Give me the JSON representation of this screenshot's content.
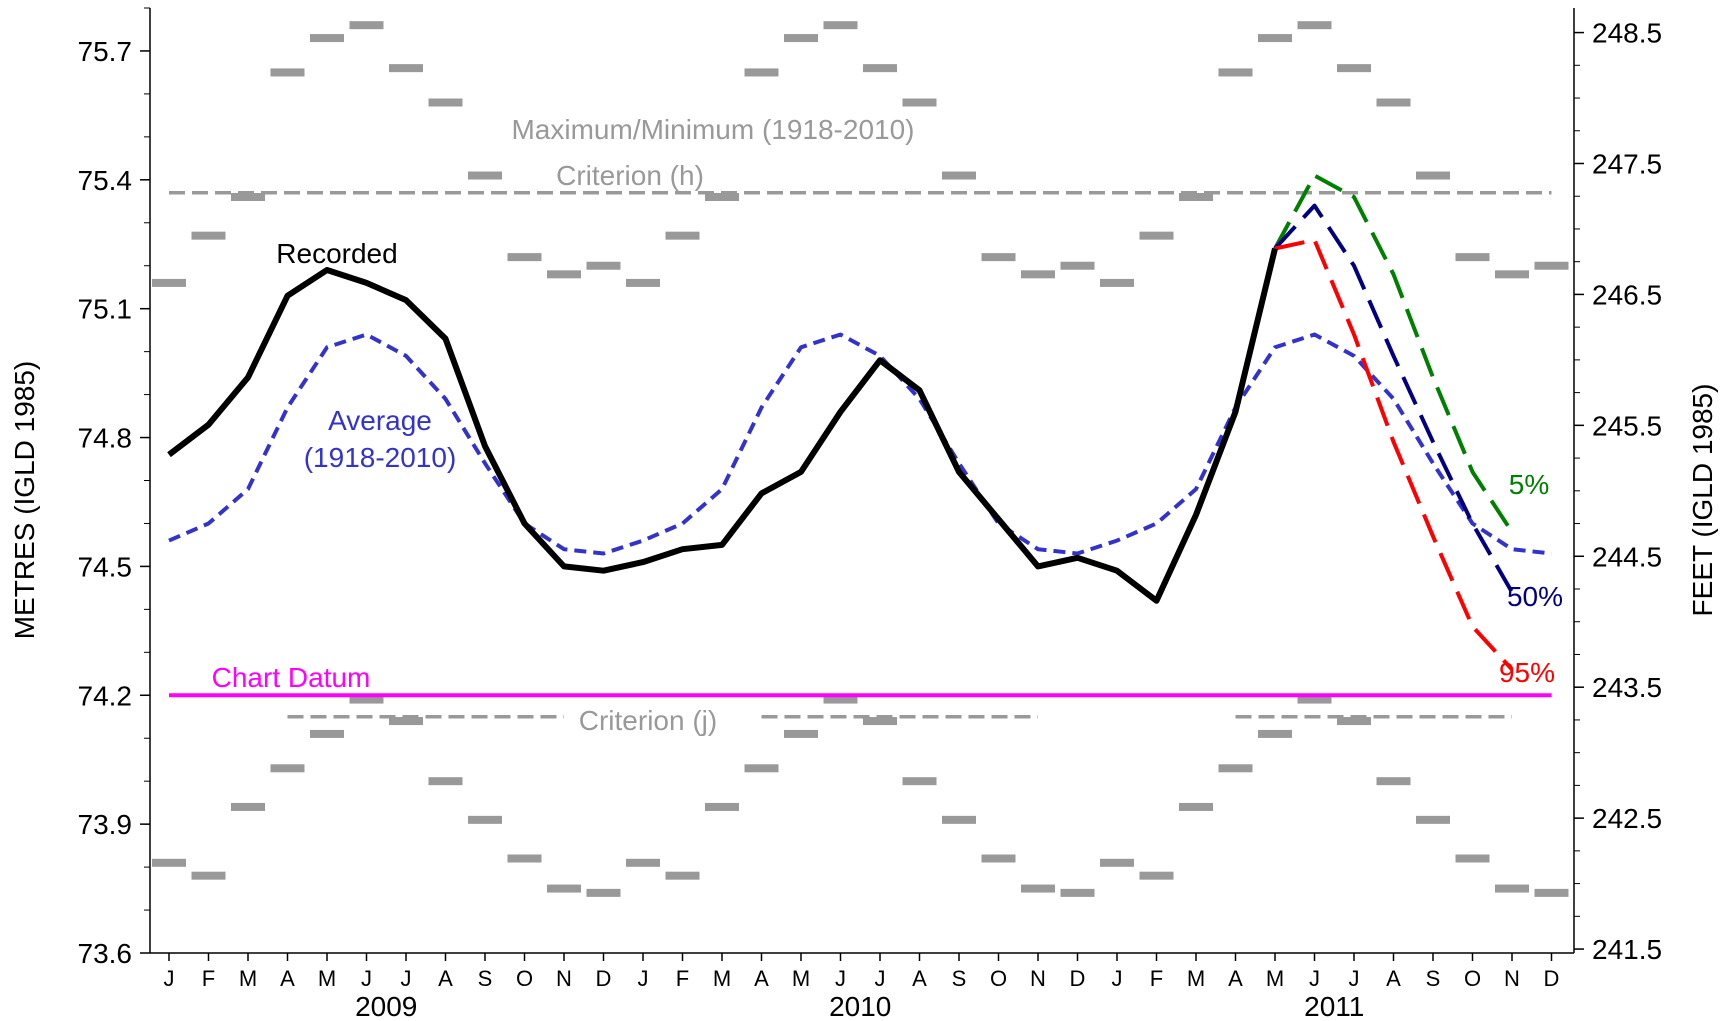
{
  "chart_data": {
    "type": "line",
    "ylabel_left": "METRES (IGLD 1985)",
    "ylabel_right": "FEET (IGLD 1985)",
    "ylim_metres": [
      73.6,
      75.8
    ],
    "yticks_metres": [
      "73.6",
      "73.9",
      "74.2",
      "74.5",
      "74.8",
      "75.1",
      "75.4",
      "75.7"
    ],
    "yticks_feet": [
      "241.5",
      "242.5",
      "243.5",
      "244.5",
      "245.5",
      "246.5",
      "247.5",
      "248.5"
    ],
    "yticks_feet_values": [
      241.5,
      242.5,
      243.5,
      244.5,
      245.5,
      246.5,
      247.5,
      248.5
    ],
    "month_labels": [
      "J",
      "F",
      "M",
      "A",
      "M",
      "J",
      "J",
      "A",
      "S",
      "O",
      "N",
      "D",
      "J",
      "F",
      "M",
      "A",
      "M",
      "J",
      "J",
      "A",
      "S",
      "O",
      "N",
      "D",
      "J",
      "F",
      "M",
      "A",
      "M",
      "J",
      "J",
      "A",
      "S",
      "O",
      "N",
      "D"
    ],
    "years": [
      "2009",
      "2010",
      "2011"
    ],
    "colors": {
      "recorded": "#000000",
      "average": "#3333cc",
      "criterion": "#999999",
      "maxmin": "#999999",
      "chart_datum": "#ff00ff",
      "p5": "#008000",
      "p50": "#000080",
      "p95": "#ff0000"
    },
    "series": [
      {
        "name": "Recorded",
        "start_month": 0,
        "values": [
          74.76,
          74.83,
          74.94,
          75.13,
          75.19,
          75.16,
          75.12,
          75.03,
          74.78,
          74.6,
          74.5,
          74.49,
          74.51,
          74.54,
          74.55,
          74.67,
          74.72,
          74.86,
          74.98,
          74.91,
          74.72,
          74.61,
          74.5,
          74.52,
          74.49,
          74.42,
          74.62,
          74.86,
          75.24
        ]
      },
      {
        "name": "Average (1918-2010)",
        "start_month": 0,
        "values": [
          74.56,
          74.6,
          74.68,
          74.87,
          75.01,
          75.04,
          74.99,
          74.89,
          74.74,
          74.6,
          74.54,
          74.53,
          74.56,
          74.6,
          74.68,
          74.87,
          75.01,
          75.04,
          74.99,
          74.89,
          74.74,
          74.6,
          74.54,
          74.53,
          74.56,
          74.6,
          74.68,
          74.87,
          75.01,
          75.04,
          74.99,
          74.89,
          74.74,
          74.6,
          74.54,
          74.53
        ]
      },
      {
        "name": "5%",
        "start_month": 28,
        "values": [
          75.24,
          75.41,
          75.36,
          75.18,
          74.94,
          74.72,
          74.58
        ]
      },
      {
        "name": "50%",
        "start_month": 28,
        "values": [
          75.24,
          75.34,
          75.2,
          74.99,
          74.79,
          74.6,
          74.44
        ]
      },
      {
        "name": "95%",
        "start_month": 28,
        "values": [
          75.24,
          75.26,
          75.04,
          74.79,
          74.57,
          74.36,
          74.26
        ]
      }
    ],
    "maximum_monthly": [
      75.16,
      75.27,
      75.36,
      75.65,
      75.73,
      75.76,
      75.66,
      75.58,
      75.41,
      75.22,
      75.18,
      75.2
    ],
    "minimum_monthly": [
      73.81,
      73.78,
      73.94,
      74.03,
      74.11,
      74.19,
      74.14,
      74.0,
      73.91,
      73.82,
      73.75,
      73.74
    ],
    "criterion_h": 75.37,
    "criterion_j": 74.15,
    "chart_datum": 74.2,
    "annotations": {
      "maxmin": "Maximum/Minimum (1918-2010)",
      "criterion_h": "Criterion (h)",
      "criterion_j": "Criterion (j)",
      "recorded": "Recorded",
      "average_line1": "Average",
      "average_line2": "(1918-2010)",
      "chart_datum": "Chart Datum",
      "p5": "5%",
      "p50": "50%",
      "p95": "95%"
    }
  }
}
